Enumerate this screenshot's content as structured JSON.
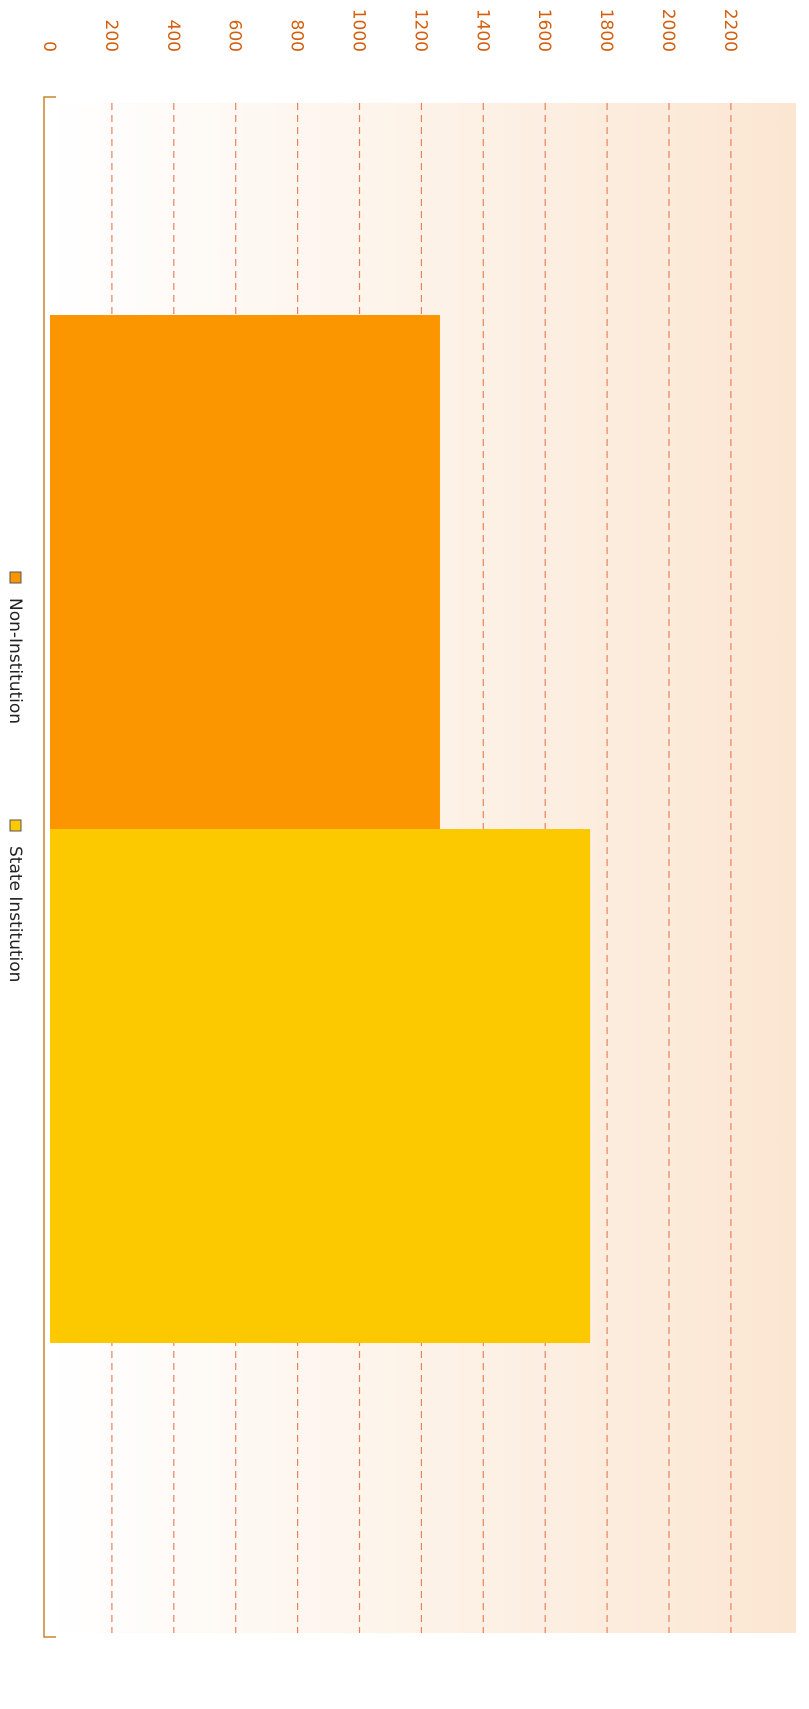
{
  "chart_data": {
    "type": "bar",
    "orientation": "rotated",
    "series": [
      {
        "name": "Non-Institution",
        "value": 1260,
        "color": "#fb9500"
      },
      {
        "name": "State Institution",
        "value": 1745,
        "color": "#fcc900"
      }
    ],
    "value_axis": {
      "min": 0,
      "max": 2200,
      "ticks": [
        0,
        200,
        400,
        600,
        800,
        1000,
        1200,
        1400,
        1600,
        1800,
        2000,
        2200
      ],
      "tick_labels": [
        "0",
        "200",
        "400",
        "600",
        "800",
        "1000",
        "1200",
        "1400",
        "1600",
        "1800",
        "2000",
        "2200"
      ],
      "tick_color": "#d35f10"
    },
    "grid": true,
    "grid_style": "dashed",
    "grid_color": "#e8825a",
    "background_gradient": [
      "#ffffff",
      "#fbe6d2"
    ],
    "axis_color": "#c9852c",
    "legend": {
      "placement": "bottom",
      "entries": [
        "Non-Institution",
        "State Institution"
      ]
    }
  }
}
